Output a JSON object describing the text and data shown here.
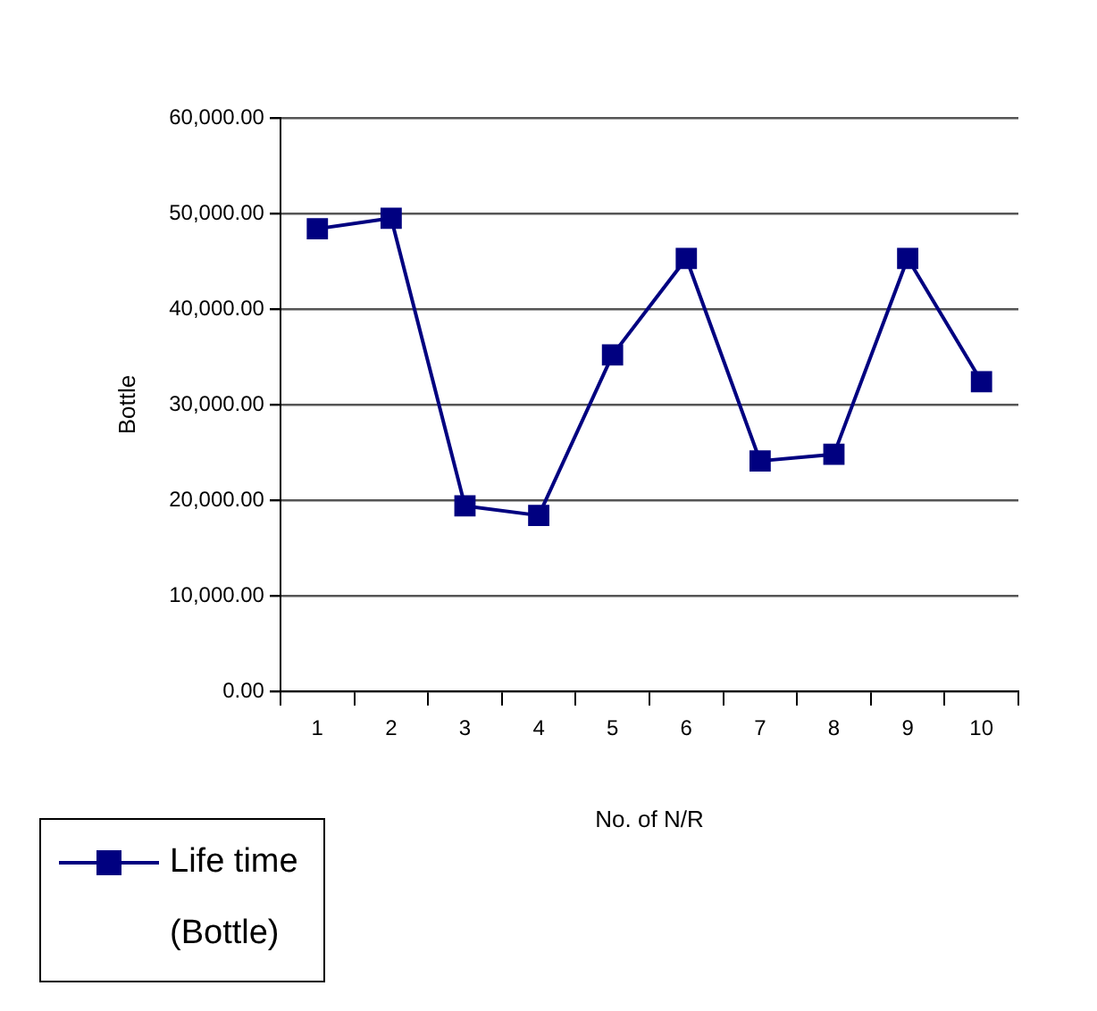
{
  "chart_data": {
    "type": "line",
    "xlabel": "No. of N/R",
    "ylabel": "Bottle",
    "categories": [
      "1",
      "2",
      "3",
      "4",
      "5",
      "6",
      "7",
      "8",
      "9",
      "10"
    ],
    "series": [
      {
        "name": "Life time (Bottle)",
        "color": "#000080",
        "values": [
          48400,
          49500,
          19400,
          18400,
          35200,
          45300,
          24100,
          24800,
          45300,
          32400
        ]
      }
    ],
    "ylim": [
      0,
      60000
    ],
    "yticks": [
      {
        "value": 0,
        "label": "0.00"
      },
      {
        "value": 10000,
        "label": "10,000.00"
      },
      {
        "value": 20000,
        "label": "20,000.00"
      },
      {
        "value": 30000,
        "label": "30,000.00"
      },
      {
        "value": 40000,
        "label": "40,000.00"
      },
      {
        "value": 50000,
        "label": "50,000.00"
      },
      {
        "value": 60000,
        "label": "60,000.00"
      }
    ],
    "grid": "y",
    "legend": "bottom left",
    "marker": "square",
    "line_style": "solid"
  }
}
